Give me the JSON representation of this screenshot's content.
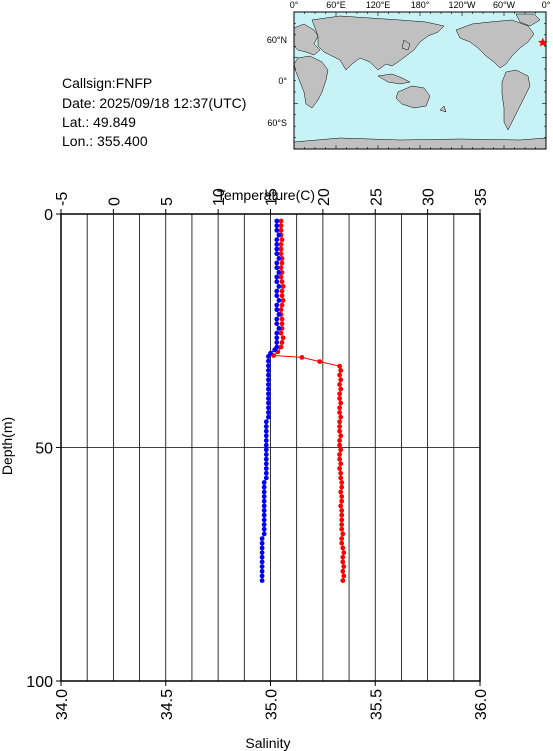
{
  "info": {
    "callsign": "Callsign:FNFP",
    "date": "Date:  2025/09/18 12:37(UTC)",
    "lat": "Lat.:  49.849",
    "lon": "Lon.:  355.400"
  },
  "map": {
    "lon_labels": [
      "0°",
      "60°E",
      "120°E",
      "180°",
      "120°W",
      "60°W",
      "0°"
    ],
    "lat_labels": [
      "60°N",
      "0°",
      "60°S"
    ],
    "colors": {
      "ocean": "#c8f3f6",
      "land": "#c0c0c0",
      "marker": "#ff0000"
    },
    "marker": {
      "lat": 49.849,
      "lon": 355.4
    }
  },
  "chart_data": {
    "type": "scatter",
    "title": "",
    "top_axis_label": "Temperature(C)",
    "bottom_axis_label": "Salinity",
    "ylabel": "Depth(m)",
    "temperature_ticks": [
      "-5",
      "0",
      "5",
      "10",
      "15",
      "20",
      "25",
      "30",
      "35"
    ],
    "salinity_ticks": [
      "34.0",
      "34.5",
      "35.0",
      "35.5",
      "36.0"
    ],
    "depth_ticks": [
      "0",
      "50",
      "100"
    ],
    "temperature_range": [
      -5,
      35
    ],
    "salinity_range": [
      34.0,
      36.0
    ],
    "depth_range": [
      0,
      100
    ],
    "y_inverted": true,
    "grid": true,
    "series": [
      {
        "color": "#ff0000",
        "axis": "temperature",
        "points": [
          [
            16.0,
            1.5
          ],
          [
            16.0,
            2.5
          ],
          [
            16.0,
            3.5
          ],
          [
            16.0,
            4.5
          ],
          [
            16.1,
            5.5
          ],
          [
            16.0,
            6.5
          ],
          [
            16.0,
            7.5
          ],
          [
            16.0,
            8.5
          ],
          [
            16.1,
            9.5
          ],
          [
            16.1,
            10.5
          ],
          [
            16.0,
            11.5
          ],
          [
            16.1,
            12.5
          ],
          [
            16.0,
            13.5
          ],
          [
            16.1,
            14.5
          ],
          [
            16.2,
            15.5
          ],
          [
            16.1,
            16.5
          ],
          [
            16.1,
            17.5
          ],
          [
            16.2,
            18.5
          ],
          [
            16.1,
            19.5
          ],
          [
            16.0,
            20.5
          ],
          [
            16.0,
            21.5
          ],
          [
            16.1,
            22.5
          ],
          [
            16.1,
            23.5
          ],
          [
            16.1,
            24.5
          ],
          [
            16.0,
            25.5
          ],
          [
            16.2,
            26.5
          ],
          [
            16.1,
            27.5
          ],
          [
            16.0,
            28.5
          ],
          [
            15.7,
            29.5
          ],
          [
            15.3,
            30.3
          ],
          [
            18.0,
            30.7
          ],
          [
            19.7,
            31.6
          ],
          [
            21.6,
            32.6
          ],
          [
            21.7,
            33.5
          ],
          [
            21.6,
            34.5
          ],
          [
            21.7,
            35.5
          ],
          [
            21.6,
            36.5
          ],
          [
            21.7,
            37.5
          ],
          [
            21.6,
            38.5
          ],
          [
            21.6,
            39.5
          ],
          [
            21.7,
            40.5
          ],
          [
            21.6,
            41.5
          ],
          [
            21.6,
            42.5
          ],
          [
            21.7,
            43.5
          ],
          [
            21.6,
            44.5
          ],
          [
            21.6,
            45.5
          ],
          [
            21.6,
            46.5
          ],
          [
            21.7,
            47.5
          ],
          [
            21.6,
            48.5
          ],
          [
            21.6,
            49.5
          ],
          [
            21.7,
            50.5
          ],
          [
            21.6,
            51.5
          ],
          [
            21.6,
            52.5
          ],
          [
            21.7,
            53.5
          ],
          [
            21.6,
            54.5
          ],
          [
            21.7,
            55.5
          ],
          [
            21.7,
            56.5
          ],
          [
            21.8,
            57.5
          ],
          [
            21.8,
            58.5
          ],
          [
            21.7,
            59.5
          ],
          [
            21.8,
            60.5
          ],
          [
            21.8,
            61.5
          ],
          [
            21.7,
            62.5
          ],
          [
            21.8,
            63.5
          ],
          [
            21.8,
            64.5
          ],
          [
            21.8,
            65.5
          ],
          [
            21.8,
            66.5
          ],
          [
            21.8,
            67.5
          ],
          [
            21.9,
            68.5
          ],
          [
            21.8,
            69.5
          ],
          [
            21.8,
            70.5
          ],
          [
            21.9,
            71.5
          ],
          [
            22.0,
            72.5
          ],
          [
            21.9,
            73.5
          ],
          [
            21.9,
            74.5
          ],
          [
            22.0,
            75.5
          ],
          [
            21.9,
            76.5
          ],
          [
            22.0,
            77.5
          ],
          [
            21.9,
            78.5
          ]
        ]
      },
      {
        "color": "#0000ff",
        "axis": "salinity",
        "points": [
          [
            35.03,
            1.5
          ],
          [
            35.03,
            2.5
          ],
          [
            35.03,
            3.5
          ],
          [
            35.04,
            4.5
          ],
          [
            35.03,
            5.5
          ],
          [
            35.03,
            6.5
          ],
          [
            35.03,
            7.5
          ],
          [
            35.03,
            8.5
          ],
          [
            35.04,
            9.5
          ],
          [
            35.03,
            10.5
          ],
          [
            35.03,
            11.5
          ],
          [
            35.04,
            12.5
          ],
          [
            35.03,
            13.5
          ],
          [
            35.03,
            14.5
          ],
          [
            35.04,
            15.5
          ],
          [
            35.03,
            16.5
          ],
          [
            35.03,
            17.5
          ],
          [
            35.04,
            18.5
          ],
          [
            35.03,
            19.5
          ],
          [
            35.03,
            20.5
          ],
          [
            35.04,
            21.5
          ],
          [
            35.03,
            22.5
          ],
          [
            35.03,
            23.5
          ],
          [
            35.04,
            24.5
          ],
          [
            35.03,
            25.5
          ],
          [
            35.03,
            26.5
          ],
          [
            35.03,
            27.5
          ],
          [
            35.03,
            28.5
          ],
          [
            35.02,
            29.1
          ],
          [
            35.0,
            29.8
          ],
          [
            34.99,
            30.5
          ],
          [
            34.99,
            31.5
          ],
          [
            34.99,
            32.5
          ],
          [
            34.99,
            33.5
          ],
          [
            34.99,
            34.5
          ],
          [
            34.99,
            35.5
          ],
          [
            34.99,
            36.5
          ],
          [
            34.99,
            37.5
          ],
          [
            34.99,
            38.5
          ],
          [
            34.99,
            39.5
          ],
          [
            34.99,
            40.5
          ],
          [
            34.99,
            41.5
          ],
          [
            34.99,
            42.5
          ],
          [
            34.99,
            43.5
          ],
          [
            34.98,
            44.5
          ],
          [
            34.98,
            45.5
          ],
          [
            34.98,
            46.5
          ],
          [
            34.98,
            47.5
          ],
          [
            34.98,
            48.5
          ],
          [
            34.98,
            49.5
          ],
          [
            34.98,
            50.5
          ],
          [
            34.98,
            51.5
          ],
          [
            34.98,
            52.5
          ],
          [
            34.98,
            53.5
          ],
          [
            34.98,
            54.5
          ],
          [
            34.98,
            55.5
          ],
          [
            34.98,
            56.5
          ],
          [
            34.97,
            57.5
          ],
          [
            34.97,
            58.5
          ],
          [
            34.97,
            59.5
          ],
          [
            34.97,
            60.5
          ],
          [
            34.97,
            61.5
          ],
          [
            34.97,
            62.5
          ],
          [
            34.97,
            63.5
          ],
          [
            34.97,
            64.5
          ],
          [
            34.97,
            65.5
          ],
          [
            34.97,
            66.5
          ],
          [
            34.97,
            67.5
          ],
          [
            34.97,
            68.5
          ],
          [
            34.96,
            69.5
          ],
          [
            34.96,
            70.5
          ],
          [
            34.96,
            71.5
          ],
          [
            34.96,
            72.5
          ],
          [
            34.96,
            73.5
          ],
          [
            34.96,
            74.5
          ],
          [
            34.96,
            75.5
          ],
          [
            34.96,
            76.5
          ],
          [
            34.96,
            77.5
          ],
          [
            34.96,
            78.5
          ]
        ]
      }
    ]
  }
}
